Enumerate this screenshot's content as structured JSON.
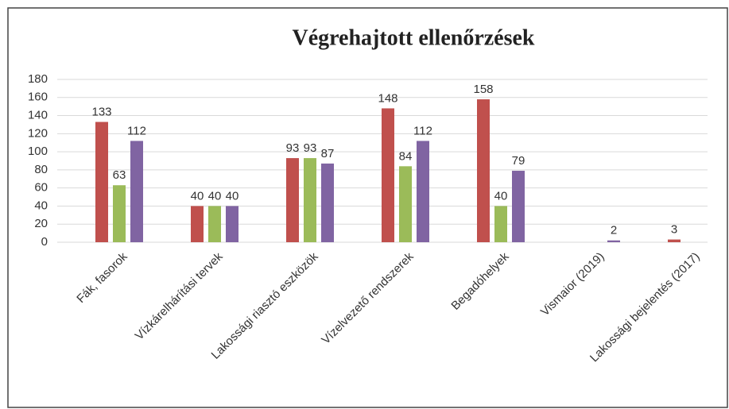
{
  "chart_data": {
    "type": "bar",
    "title": "Végrehajtott ellenőrzések",
    "categories": [
      "Fák, fasorok",
      "Vízkárelhárítási tervek",
      "Lakossági riasztó eszközök",
      "Vízelvezető rendszerek",
      "Begadóhelyek",
      "Vismaior (2019)",
      "Lakossági bejelentés (2017)"
    ],
    "series": [
      {
        "color": "#c0504d",
        "values": [
          133,
          40,
          93,
          148,
          158,
          null,
          3
        ]
      },
      {
        "color": "#9bbb59",
        "values": [
          63,
          40,
          93,
          84,
          40,
          null,
          null
        ]
      },
      {
        "color": "#8064a2",
        "values": [
          112,
          40,
          87,
          112,
          79,
          2,
          null
        ]
      }
    ],
    "ylim": [
      0,
      180
    ],
    "yticks": [
      0,
      20,
      40,
      60,
      80,
      100,
      120,
      140,
      160,
      180
    ],
    "grid": true
  }
}
